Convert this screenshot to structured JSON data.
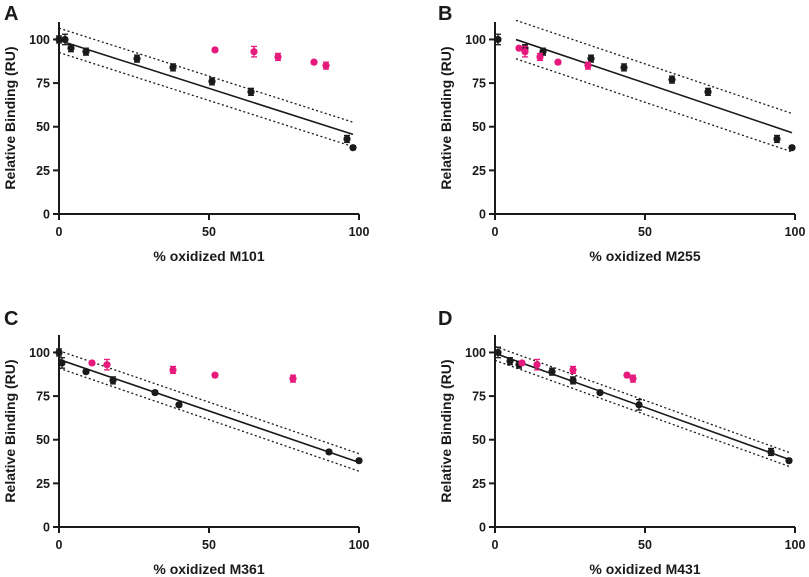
{
  "figure": {
    "panels_count": 4
  },
  "colors": {
    "series_control": "#1a1a1a",
    "series_oxidized": "#e6197d",
    "axis": "#1a1a1a",
    "fit_line": "#1a1a1a"
  },
  "chart_data": [
    {
      "type": "scatter",
      "panel": "A",
      "xlabel": "% oxidized M101",
      "ylabel": "Relative Binding (RU)",
      "xlim": [
        0,
        100
      ],
      "ylim": [
        0,
        110
      ],
      "xticks": [
        0,
        50,
        100
      ],
      "yticks": [
        0,
        25,
        50,
        75,
        100
      ],
      "series": [
        {
          "name": "black",
          "color": "#1a1a1a",
          "x": [
            0,
            2,
            4,
            9,
            26,
            38,
            51,
            64,
            96,
            98
          ],
          "y": [
            100,
            100,
            95,
            93,
            89,
            84,
            76,
            70,
            43,
            38
          ],
          "err": [
            2,
            3,
            2,
            2,
            2,
            2,
            2,
            2,
            2,
            1
          ]
        },
        {
          "name": "pink",
          "color": "#e6197d",
          "x": [
            52,
            65,
            73,
            85,
            89
          ],
          "y": [
            94,
            93,
            90,
            87,
            85
          ],
          "err": [
            1,
            3,
            2,
            1,
            2
          ]
        }
      ],
      "fit": {
        "slope": -0.55,
        "intercept": 99.5,
        "band": 7,
        "x_range": [
          0,
          98
        ]
      }
    },
    {
      "type": "scatter",
      "panel": "B",
      "xlabel": "% oxidized M255",
      "ylabel": "Relative Binding (RU)",
      "xlim": [
        0,
        100
      ],
      "ylim": [
        0,
        110
      ],
      "xticks": [
        0,
        50,
        100
      ],
      "yticks": [
        0,
        25,
        50,
        75,
        100
      ],
      "series": [
        {
          "name": "black",
          "color": "#1a1a1a",
          "x": [
            1,
            10,
            16,
            32,
            43,
            59,
            71,
            94,
            99
          ],
          "y": [
            100,
            95,
            93,
            89,
            84,
            77,
            70,
            43,
            38
          ],
          "err": [
            3,
            2,
            2,
            2,
            2,
            2,
            2,
            2,
            1
          ]
        },
        {
          "name": "pink",
          "color": "#e6197d",
          "x": [
            8,
            10,
            15,
            21,
            31
          ],
          "y": [
            95,
            93,
            90,
            87,
            85
          ],
          "err": [
            1,
            3,
            2,
            1,
            2
          ]
        }
      ],
      "fit": {
        "slope": -0.58,
        "intercept": 104,
        "band": 11,
        "x_range": [
          7,
          99
        ]
      }
    },
    {
      "type": "scatter",
      "panel": "C",
      "xlabel": "% oxidized M361",
      "ylabel": "Relative Binding (RU)",
      "xlim": [
        0,
        100
      ],
      "ylim": [
        0,
        110
      ],
      "xticks": [
        0,
        50,
        100
      ],
      "yticks": [
        0,
        25,
        50,
        75,
        100
      ],
      "series": [
        {
          "name": "black",
          "color": "#1a1a1a",
          "x": [
            0,
            1,
            9,
            18,
            32,
            40,
            90,
            100
          ],
          "y": [
            100,
            94,
            89,
            84,
            77,
            70,
            43,
            38
          ],
          "err": [
            2,
            3,
            1,
            2,
            1,
            1,
            1,
            1
          ]
        },
        {
          "name": "pink",
          "color": "#e6197d",
          "x": [
            11,
            16,
            38,
            52,
            78
          ],
          "y": [
            94,
            93,
            90,
            87,
            85
          ],
          "err": [
            1,
            3,
            2,
            1,
            2
          ]
        }
      ],
      "fit": {
        "slope": -0.59,
        "intercept": 96,
        "band": 5,
        "x_range": [
          0,
          100
        ]
      }
    },
    {
      "type": "scatter",
      "panel": "D",
      "xlabel": "% oxidized M431",
      "ylabel": "Relative Binding (RU)",
      "xlim": [
        0,
        100
      ],
      "ylim": [
        0,
        110
      ],
      "xticks": [
        0,
        50,
        100
      ],
      "yticks": [
        0,
        25,
        50,
        75,
        100
      ],
      "series": [
        {
          "name": "black",
          "color": "#1a1a1a",
          "x": [
            1,
            5,
            8,
            19,
            26,
            35,
            48,
            92,
            98
          ],
          "y": [
            100,
            95,
            93,
            89,
            84,
            77,
            70,
            43,
            38
          ],
          "err": [
            3,
            2,
            2,
            2,
            2,
            1,
            3,
            2,
            1
          ]
        },
        {
          "name": "pink",
          "color": "#e6197d",
          "x": [
            9,
            14,
            26,
            44,
            46
          ],
          "y": [
            94,
            93,
            90,
            87,
            85
          ],
          "err": [
            1,
            3,
            2,
            1,
            2
          ]
        }
      ],
      "fit": {
        "slope": -0.62,
        "intercept": 99.5,
        "band": 4,
        "x_range": [
          0,
          98
        ]
      }
    }
  ]
}
